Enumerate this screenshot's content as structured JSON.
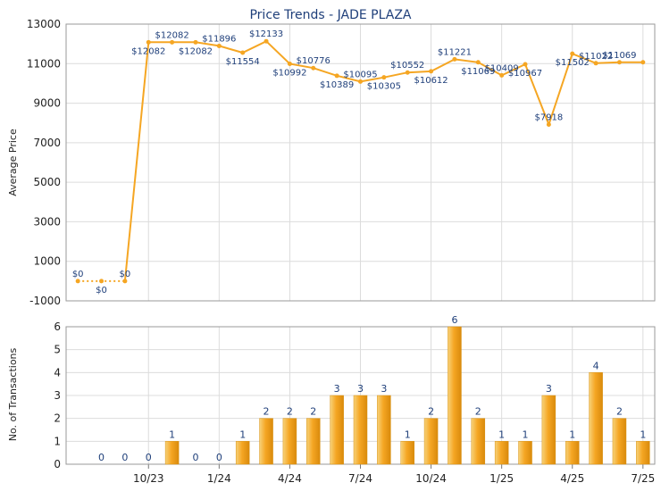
{
  "chart_data": [
    {
      "type": "line",
      "title": "Price Trends - JADE PLAZA",
      "ylabel": "Average Price",
      "ylim": [
        -1000,
        13000
      ],
      "yticks": [
        -1000,
        1000,
        3000,
        5000,
        7000,
        9000,
        11000,
        13000
      ],
      "grid": true,
      "color": "#f5a623",
      "x": [
        0,
        1,
        2,
        3,
        4,
        5,
        6,
        7,
        8,
        9,
        10,
        11,
        12,
        13,
        14,
        15,
        16,
        17,
        18,
        19,
        20,
        21,
        22,
        23,
        24
      ],
      "values": [
        0,
        0,
        0,
        12082,
        12082,
        12082,
        11896,
        11554,
        12133,
        10992,
        10776,
        10389,
        10095,
        10305,
        10552,
        10612,
        11221,
        11069,
        10409,
        10967,
        7918,
        11502,
        11022,
        11069,
        11069
      ],
      "labels": [
        "$0",
        "$0",
        "$0",
        "$12082",
        "$12082",
        "$12082",
        "$11896",
        "$11554",
        "$12133",
        "$10992",
        "$10776",
        "$10389",
        "$10095",
        "$10305",
        "$10552",
        "$10612",
        "$11221",
        "$11069",
        "$10409",
        "$10967",
        "$7918",
        "$11502",
        "$11022",
        "$11069",
        ""
      ],
      "dotted_until": 2
    },
    {
      "type": "bar",
      "ylabel": "No. of Transactions",
      "ylim": [
        0,
        6
      ],
      "yticks": [
        0,
        1,
        2,
        3,
        4,
        5,
        6
      ],
      "grid": true,
      "color": "#f5a623",
      "categories": [
        "",
        "",
        "10/23",
        "",
        "",
        "1/24",
        "",
        "",
        "4/24",
        "",
        "",
        "7/24",
        "",
        "",
        "10/24",
        "",
        "",
        "1/25",
        "",
        "",
        "4/25",
        "",
        "",
        "7/25"
      ],
      "x_tick_labels": [
        "10/23",
        "1/24",
        "4/24",
        "7/24",
        "10/24",
        "1/25",
        "4/25",
        "7/25"
      ],
      "values": [
        0,
        0,
        0,
        1,
        0,
        0,
        1,
        2,
        2,
        2,
        3,
        3,
        3,
        1,
        2,
        6,
        2,
        1,
        1,
        3,
        1,
        4,
        2,
        1
      ]
    }
  ]
}
